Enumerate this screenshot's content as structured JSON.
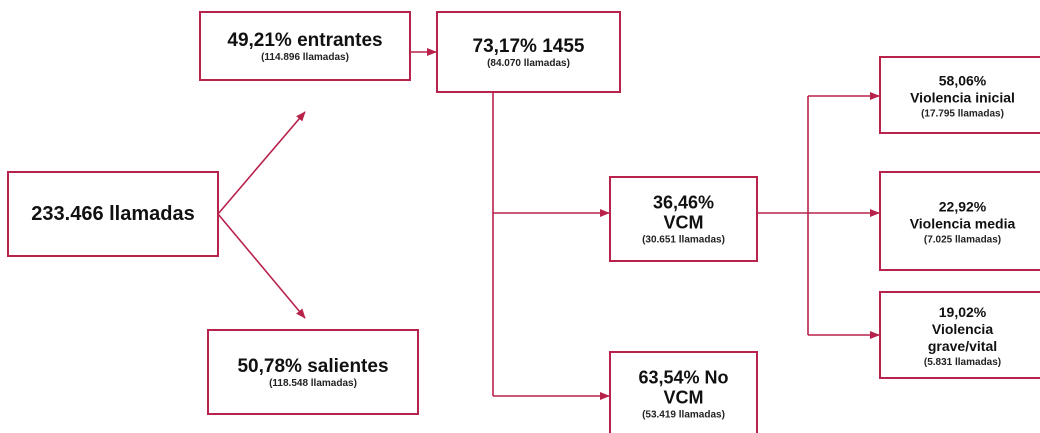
{
  "nodes": [
    {
      "lines": [
        "233.466 llamadas"
      ]
    },
    {
      "lines": [
        "49,21% entrantes"
      ],
      "detail": "(114.896 llamadas)"
    },
    {
      "lines": [
        "73,17% 1455"
      ],
      "detail": "(84.070  llamadas)"
    },
    {
      "lines": [
        "50,78% salientes"
      ],
      "detail": "(118.548 llamadas)"
    },
    {
      "lines": [
        "36,46%",
        "VCM"
      ],
      "detail": "(30.651  llamadas)"
    },
    {
      "lines": [
        "63,54% No",
        "VCM"
      ],
      "detail": "(53.419 llamadas)"
    },
    {
      "lines": [
        "58,06%",
        "Violencia inicial"
      ],
      "detail": "(17.795 llamadas)"
    },
    {
      "lines": [
        "22,92%",
        "Violencia media"
      ],
      "detail": "(7.025  llamadas)"
    },
    {
      "lines": [
        "19,02%",
        "Violencia",
        "grave/vital"
      ],
      "detail": "(5.831  llamadas)"
    }
  ]
}
